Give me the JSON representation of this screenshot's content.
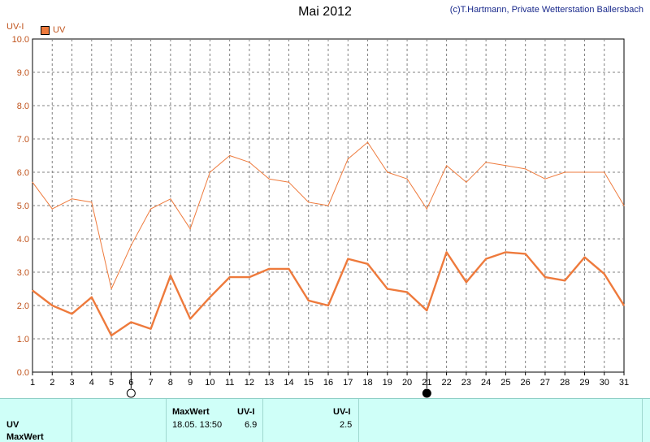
{
  "header": {
    "title": "Mai 2012",
    "copyright": "(c)T.Hartmann, Private Wetterstation Ballersbach"
  },
  "legend": {
    "label": "UV"
  },
  "colors": {
    "line": "#ee7a3c",
    "grid": "#808080",
    "axis_text": "#c0531c",
    "table_bg": "#cffff8"
  },
  "chart_data": {
    "type": "line",
    "ylabel": "UV-I",
    "ylim": [
      0,
      10
    ],
    "yticks": [
      "0.0",
      "1.0",
      "2.0",
      "3.0",
      "4.0",
      "5.0",
      "6.0",
      "7.0",
      "8.0",
      "9.0",
      "10.0"
    ],
    "x": [
      1,
      2,
      3,
      4,
      5,
      6,
      7,
      8,
      9,
      10,
      11,
      12,
      13,
      14,
      15,
      16,
      17,
      18,
      19,
      20,
      21,
      22,
      23,
      24,
      25,
      26,
      27,
      28,
      29,
      30,
      31
    ],
    "grid": true,
    "legend_placement": "top-left",
    "series": [
      {
        "name": "UV",
        "style": "max-thin",
        "values": [
          5.7,
          4.9,
          5.2,
          5.1,
          2.5,
          3.8,
          4.9,
          5.2,
          4.3,
          6.0,
          6.5,
          6.3,
          5.8,
          5.7,
          5.1,
          5.0,
          6.4,
          6.9,
          6.0,
          5.8,
          4.9,
          6.2,
          5.7,
          6.3,
          6.2,
          6.1,
          5.8,
          6.0,
          6.0,
          6.0,
          5.0
        ]
      },
      {
        "name": "UV",
        "style": "avg-thick",
        "values": [
          2.45,
          2.0,
          1.75,
          2.25,
          1.1,
          1.5,
          1.3,
          2.9,
          1.6,
          2.25,
          2.85,
          2.85,
          3.1,
          3.1,
          2.15,
          2.0,
          3.4,
          3.25,
          2.5,
          2.4,
          1.85,
          3.6,
          2.7,
          3.4,
          3.6,
          3.55,
          2.85,
          2.75,
          3.45,
          2.95,
          2.0
        ]
      }
    ],
    "moon_phases": [
      {
        "day": 6,
        "phase": "full"
      },
      {
        "day": 21,
        "phase": "new"
      }
    ]
  },
  "table": {
    "row1_label": "UV",
    "row2_label": "MaxWert",
    "col_max_header": "MaxWert",
    "col_uvi_header": "UV-I",
    "col_uvi2_header": "UV-I",
    "max_datetime": "18.05.  13:50",
    "max_value": "6.9",
    "avg_value": "2.5"
  }
}
